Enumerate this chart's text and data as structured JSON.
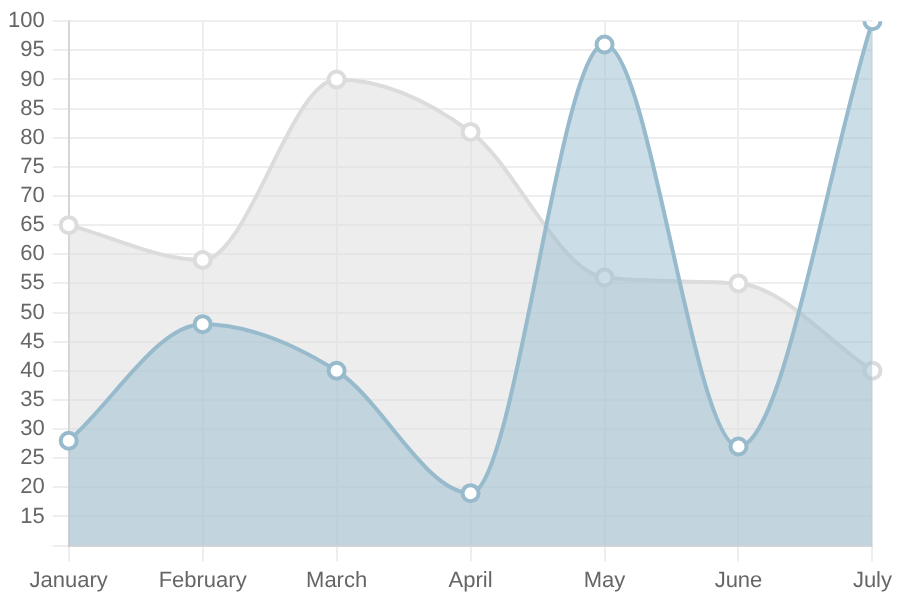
{
  "chart_data": {
    "type": "area",
    "categories": [
      "January",
      "February",
      "March",
      "April",
      "May",
      "June",
      "July"
    ],
    "series": [
      {
        "color": "#dcdcdc",
        "values": [
          65,
          59,
          90,
          81,
          56,
          55,
          40
        ]
      },
      {
        "color": "#97bbcd",
        "values": [
          28,
          48,
          40,
          19,
          96,
          27,
          100
        ]
      }
    ],
    "ylim": [
      10,
      100
    ],
    "yticks": [
      {
        "value": 10,
        "label": null
      },
      15,
      20,
      25,
      30,
      35,
      40,
      45,
      50,
      55,
      60,
      65,
      70,
      75,
      80,
      85,
      90,
      95,
      100
    ],
    "grid": true,
    "legend": false,
    "marker": "circle",
    "line_style": "solid"
  }
}
